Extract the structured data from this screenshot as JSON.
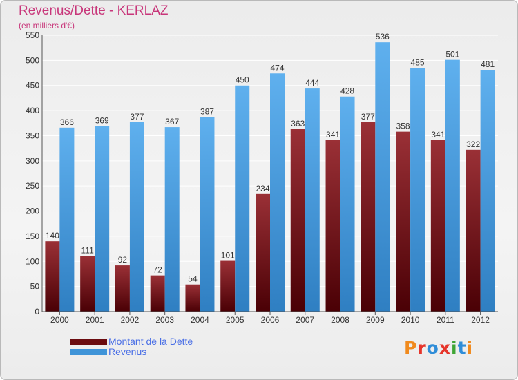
{
  "header": {
    "title": "Revenus/Dette - KERLAZ",
    "subtitle": "(en milliers d'€)"
  },
  "colors": {
    "debt": "#6b0c10",
    "revenue": "#3f94d8",
    "title": "#c8367a",
    "legend_text": "#4a6fe6"
  },
  "legend": {
    "items": [
      {
        "label": "Montant de la Dette",
        "color": "#6b0c10"
      },
      {
        "label": "Revenus",
        "color": "#3f94d8"
      }
    ]
  },
  "logo": {
    "text": "Proxiti"
  },
  "chart_data": {
    "type": "bar",
    "title": "Revenus/Dette - KERLAZ",
    "subtitle": "(en milliers d'€)",
    "categories": [
      "2000",
      "2001",
      "2002",
      "2003",
      "2004",
      "2005",
      "2006",
      "2007",
      "2008",
      "2009",
      "2010",
      "2011",
      "2012"
    ],
    "series": [
      {
        "name": "Montant de la Dette",
        "values": [
          140,
          111,
          92,
          72,
          54,
          101,
          234,
          363,
          341,
          377,
          358,
          341,
          322
        ]
      },
      {
        "name": "Revenus",
        "values": [
          366,
          369,
          377,
          367,
          387,
          450,
          474,
          444,
          428,
          536,
          485,
          501,
          481
        ]
      }
    ],
    "ylim": [
      0,
      550
    ],
    "yticks": [
      0,
      50,
      100,
      150,
      200,
      250,
      300,
      350,
      400,
      450,
      500,
      550
    ],
    "grid": true,
    "legend_position": "bottom-left"
  }
}
